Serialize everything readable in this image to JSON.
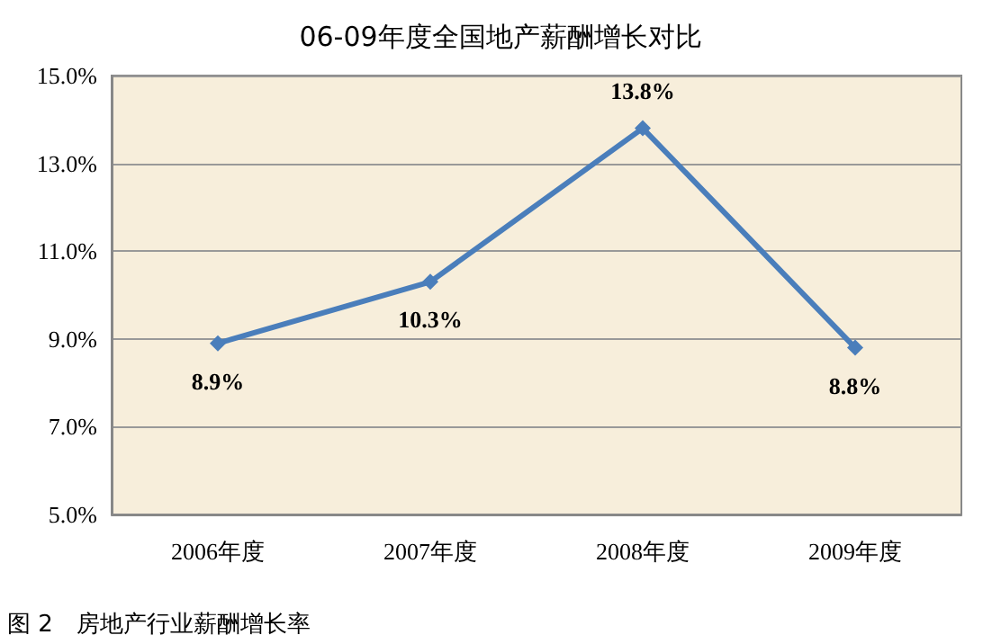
{
  "chart_data": {
    "type": "line",
    "title": "06-09年度全国地产薪酬增长对比",
    "categories": [
      "2006年度",
      "2007年度",
      "2008年度",
      "2009年度"
    ],
    "series": [
      {
        "color": "#4a7ebb",
        "values": [
          8.9,
          10.3,
          13.8,
          8.8
        ],
        "value_labels": [
          "8.9%",
          "10.3%",
          "13.8%",
          "8.8%"
        ]
      }
    ],
    "ylim": [
      5,
      15
    ],
    "yticks": [
      {
        "value": 5,
        "label": "5.0%"
      },
      {
        "value": 7,
        "label": "7.0%"
      },
      {
        "value": 9,
        "label": "9.0%"
      },
      {
        "value": 11,
        "label": "11.0%"
      },
      {
        "value": 13,
        "label": "13.0%"
      },
      {
        "value": 15,
        "label": "15.0%"
      }
    ],
    "grid": "y",
    "marker": "diamond",
    "line_style": "solid",
    "annotations": [
      "图 2　房地产行业薪酬增长率"
    ]
  }
}
